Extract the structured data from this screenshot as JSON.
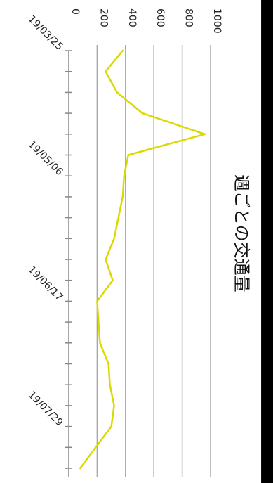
{
  "chart_data": {
    "type": "line",
    "title": "週ごとの交通量",
    "y_ticks": [
      "0",
      "200",
      "400",
      "600",
      "800",
      "1000"
    ],
    "ylim": [
      0,
      1000
    ],
    "x_tick_labels": [
      "19/03/25",
      "19/05/06",
      "19/06/17",
      "19/07/29"
    ],
    "x_start": "19/03/25",
    "x_end": "19/08/12",
    "grid": true,
    "line_color": "#dada00",
    "series": [
      {
        "x": [
          "19/03/25",
          "19/04/01",
          "19/04/08",
          "19/04/15",
          "19/04/22",
          "19/04/29",
          "19/05/06",
          "19/05/13",
          "19/05/20",
          "19/05/27",
          "19/06/03",
          "19/06/10",
          "19/06/17",
          "19/06/24",
          "19/07/01",
          "19/07/08",
          "19/07/15",
          "19/07/22",
          "19/07/29",
          "19/08/05",
          "19/08/12"
        ],
        "values": [
          380,
          260,
          340,
          520,
          960,
          420,
          390,
          380,
          350,
          320,
          260,
          310,
          200,
          210,
          220,
          280,
          290,
          320,
          300,
          190,
          80
        ]
      }
    ]
  }
}
